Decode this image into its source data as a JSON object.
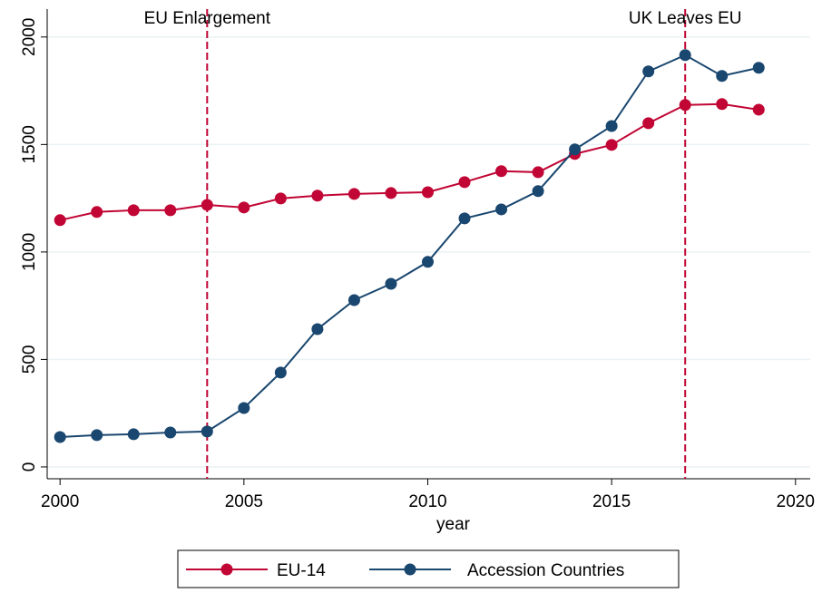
{
  "chart_data": {
    "type": "line",
    "x": [
      2000,
      2001,
      2002,
      2003,
      2004,
      2005,
      2006,
      2007,
      2008,
      2009,
      2010,
      2011,
      2012,
      2013,
      2014,
      2015,
      2016,
      2017,
      2018,
      2019
    ],
    "series": [
      {
        "name": "EU-14",
        "color": "#c10534",
        "values": [
          1148,
          1186,
          1194,
          1194,
          1219,
          1207,
          1249,
          1262,
          1270,
          1274,
          1278,
          1325,
          1376,
          1371,
          1456,
          1498,
          1599,
          1684,
          1688,
          1662
        ]
      },
      {
        "name": "Accession Countries",
        "color": "#1a476f",
        "values": [
          139,
          148,
          152,
          160,
          165,
          274,
          439,
          641,
          776,
          852,
          954,
          1156,
          1198,
          1283,
          1477,
          1586,
          1840,
          1916,
          1819,
          1857
        ]
      }
    ],
    "xlabel": "year",
    "xlim": [
      1999.65,
      2020.4
    ],
    "xticks": [
      2000,
      2005,
      2010,
      2015,
      2020
    ],
    "ylim": [
      -55,
      2130
    ],
    "yticks": [
      0,
      500,
      1000,
      1500,
      2000
    ],
    "grid": true,
    "legend": "bottom",
    "annotations": [
      {
        "x": 2004,
        "label": "EU Enlargement",
        "color": "#c10534"
      },
      {
        "x": 2017,
        "label": "UK Leaves EU",
        "color": "#c10534"
      }
    ]
  }
}
